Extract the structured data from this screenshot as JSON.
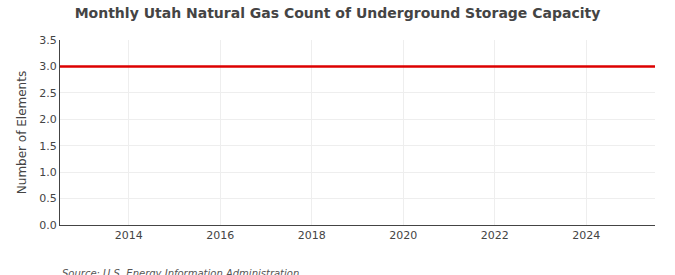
{
  "chart_data": {
    "type": "line",
    "title": "Monthly Utah Natural Gas Count of Underground Storage Capacity",
    "ylabel": "Number of Elements",
    "source": "Source: U.S. Energy Information Administration",
    "x": [
      2012.5,
      2025.5
    ],
    "values": [
      3.0,
      3.0
    ],
    "color": "#dd0000",
    "xlim": [
      2012.5,
      2025.5
    ],
    "xticks": [
      2014,
      2016,
      2018,
      2020,
      2022,
      2024
    ],
    "ylim": [
      0.0,
      3.5
    ],
    "yticks": [
      {
        "value": 0,
        "label": "0.0"
      },
      0.5,
      {
        "value": 1,
        "label": "1.0"
      },
      1.5,
      {
        "value": 2,
        "label": "2.0"
      },
      2.5,
      {
        "value": 3,
        "label": "3.0"
      },
      3.5
    ],
    "grid": true
  }
}
